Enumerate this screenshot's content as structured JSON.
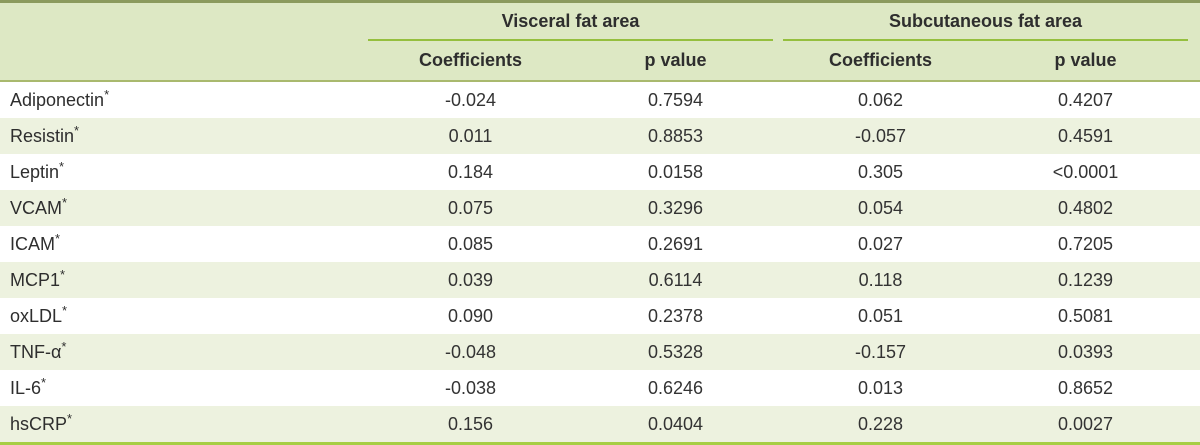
{
  "table": {
    "groups": [
      {
        "label": "Visceral fat area"
      },
      {
        "label": "Subcutaneous fat area"
      }
    ],
    "columns": [
      {
        "label": "Coefficients"
      },
      {
        "label": "p value"
      },
      {
        "label": "Coefficients"
      },
      {
        "label": "p value"
      }
    ],
    "rows": [
      {
        "label": "Adiponectin",
        "marker": "*",
        "visceral": {
          "coefficient": "-0.024",
          "p_value": "0.7594"
        },
        "subcutaneous": {
          "coefficient": "0.062",
          "p_value": "0.4207"
        }
      },
      {
        "label": "Resistin",
        "marker": "*",
        "visceral": {
          "coefficient": "0.011",
          "p_value": "0.8853"
        },
        "subcutaneous": {
          "coefficient": "-0.057",
          "p_value": "0.4591"
        }
      },
      {
        "label": "Leptin",
        "marker": "*",
        "visceral": {
          "coefficient": "0.184",
          "p_value": "0.0158"
        },
        "subcutaneous": {
          "coefficient": "0.305",
          "p_value": "<0.0001"
        }
      },
      {
        "label": "VCAM",
        "marker": "*",
        "visceral": {
          "coefficient": "0.075",
          "p_value": "0.3296"
        },
        "subcutaneous": {
          "coefficient": "0.054",
          "p_value": "0.4802"
        }
      },
      {
        "label": "ICAM",
        "marker": "*",
        "visceral": {
          "coefficient": "0.085",
          "p_value": "0.2691"
        },
        "subcutaneous": {
          "coefficient": "0.027",
          "p_value": "0.7205"
        }
      },
      {
        "label": "MCP1",
        "marker": "*",
        "visceral": {
          "coefficient": "0.039",
          "p_value": "0.6114"
        },
        "subcutaneous": {
          "coefficient": "0.118",
          "p_value": "0.1239"
        }
      },
      {
        "label": "oxLDL",
        "marker": "*",
        "visceral": {
          "coefficient": "0.090",
          "p_value": "0.2378"
        },
        "subcutaneous": {
          "coefficient": "0.051",
          "p_value": "0.5081"
        }
      },
      {
        "label": "TNF-α",
        "marker": "*",
        "visceral": {
          "coefficient": "-0.048",
          "p_value": "0.5328"
        },
        "subcutaneous": {
          "coefficient": "-0.157",
          "p_value": "0.0393"
        }
      },
      {
        "label": "IL-6",
        "marker": "*",
        "visceral": {
          "coefficient": "-0.038",
          "p_value": "0.6246"
        },
        "subcutaneous": {
          "coefficient": "0.013",
          "p_value": "0.8652"
        }
      },
      {
        "label": "hsCRP",
        "marker": "*",
        "visceral": {
          "coefficient": "0.156",
          "p_value": "0.0404"
        },
        "subcutaneous": {
          "coefficient": "0.228",
          "p_value": "0.0027"
        }
      }
    ],
    "colors": {
      "header_bg": "#dde8c4",
      "alt_row_bg": "#edf2df",
      "top_border": "#8b9a5e",
      "group_underline": "#95bf3e",
      "header_bottom_border": "#a9b96e",
      "table_bottom_border": "#a6ce44",
      "text": "#2e2e2e"
    }
  }
}
